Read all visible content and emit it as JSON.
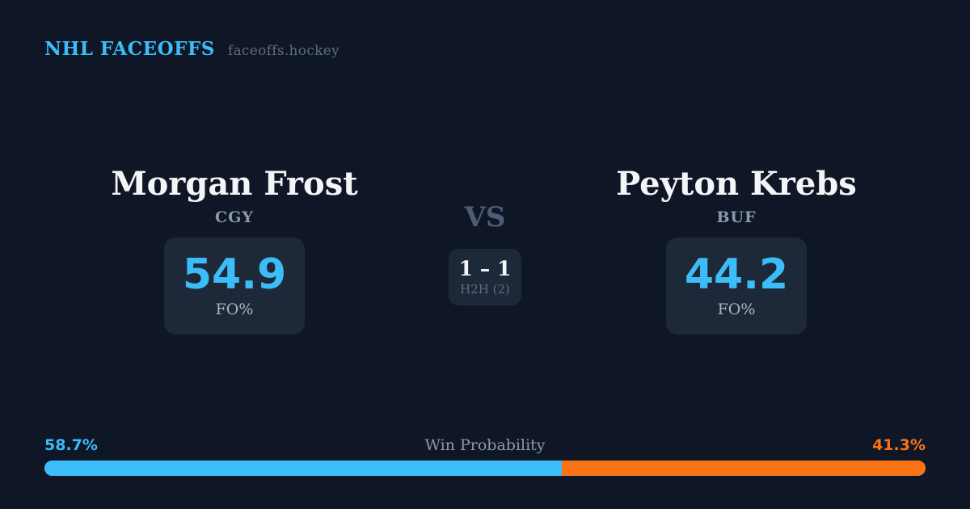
{
  "header": {
    "brand": "NHL FACEOFFS",
    "site": "faceoffs.hockey"
  },
  "matchup": {
    "vs_label": "VS",
    "h2h": {
      "record": "1 – 1",
      "label": "H2H (2)"
    },
    "players": [
      {
        "name": "Morgan Frost",
        "team": "CGY",
        "stat_value": "54.9",
        "stat_label": "FO%"
      },
      {
        "name": "Peyton Krebs",
        "team": "BUF",
        "stat_value": "44.2",
        "stat_label": "FO%"
      }
    ]
  },
  "win_probability": {
    "title": "Win Probability",
    "left_pct_label": "58.7%",
    "right_pct_label": "41.3%",
    "left_value": 58.7,
    "right_value": 41.3
  },
  "colors": {
    "background": "#0f1726",
    "card": "#1d2938",
    "accent_blue": "#3cbcf8",
    "accent_orange": "#f97316",
    "text_primary": "#f3f5f7",
    "text_secondary": "#8b98ad",
    "text_muted": "#5d6c85"
  }
}
